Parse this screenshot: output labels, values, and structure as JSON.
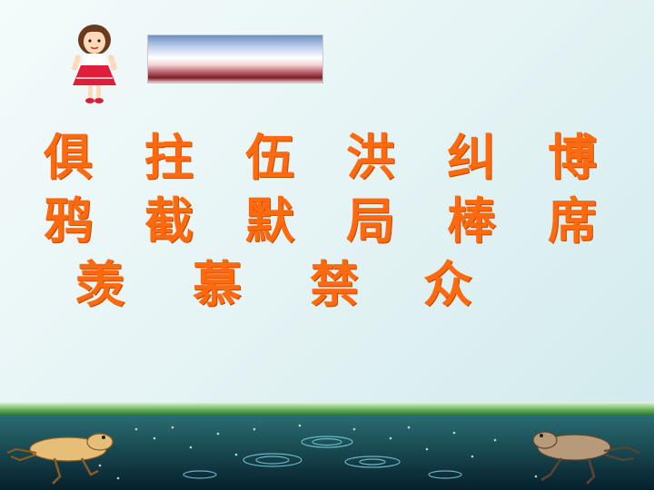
{
  "characters": {
    "row1": [
      "俱",
      "拄",
      "伍",
      "洪",
      "纠",
      "博"
    ],
    "row2": [
      "鸦",
      "截",
      "默",
      "局",
      "棒",
      "席"
    ],
    "row3": [
      "羡",
      "慕",
      "禁",
      "众"
    ]
  },
  "colors": {
    "text": "#ff6a0f",
    "background": "#e6f4f5",
    "water": "#0b3b4d",
    "grass": "#3f8a3f"
  },
  "icons": [
    "girl-illustration",
    "frog-left-illustration",
    "frog-right-illustration",
    "water-ripple-decoration"
  ]
}
